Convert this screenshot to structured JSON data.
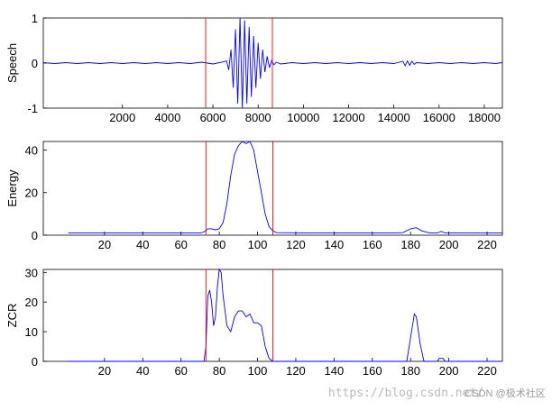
{
  "chart_data": [
    {
      "type": "line",
      "ylabel": "Speech",
      "color": "#0000ff",
      "x": [
        -1500,
        -1000,
        -500,
        0,
        500,
        1000,
        1500,
        2000,
        2500,
        3000,
        3500,
        4000,
        4500,
        5000,
        5500,
        6000,
        6500,
        6600,
        6700,
        6800,
        6900,
        7000,
        7100,
        7200,
        7300,
        7400,
        7500,
        7600,
        7700,
        7800,
        7900,
        8000,
        8100,
        8200,
        8300,
        8400,
        8500,
        8600,
        8700,
        8800,
        9000,
        9500,
        10000,
        10500,
        11000,
        11500,
        12000,
        12500,
        13000,
        13500,
        14000,
        14400,
        14500,
        14600,
        14700,
        14800,
        14900,
        15000,
        15500,
        16000,
        16500,
        17000,
        17500,
        18000,
        18500,
        18800
      ],
      "values": [
        0.01,
        -0.01,
        0.01,
        -0.01,
        0.01,
        -0.01,
        0.01,
        -0.01,
        0.01,
        -0.01,
        0.01,
        -0.01,
        0.01,
        -0.01,
        0.02,
        -0.02,
        0.03,
        0.05,
        -0.15,
        0.3,
        -0.55,
        0.75,
        -0.9,
        1.0,
        -1.0,
        0.95,
        -0.9,
        0.8,
        -0.75,
        0.6,
        -0.55,
        0.45,
        -0.35,
        0.3,
        -0.2,
        0.15,
        -0.1,
        0.06,
        -0.04,
        0.02,
        -0.02,
        0.01,
        -0.01,
        0.01,
        -0.01,
        0.01,
        -0.01,
        0.01,
        -0.01,
        0.01,
        -0.01,
        0.04,
        -0.06,
        0.05,
        -0.05,
        0.04,
        -0.03,
        0.01,
        -0.01,
        0.01,
        -0.01,
        0.01,
        -0.01,
        0.01,
        -0.01,
        0.01
      ],
      "xlim": [
        -1500,
        18800
      ],
      "xticks": [
        2000,
        4000,
        6000,
        8000,
        10000,
        12000,
        14000,
        16000,
        18000
      ],
      "ylim": [
        -1,
        1
      ],
      "yticks": [
        -1,
        0,
        1
      ],
      "vlines": [
        5680,
        8630
      ],
      "vline_color": "#ff0000"
    },
    {
      "type": "line",
      "ylabel": "Energy",
      "color": "#0000ff",
      "x": [
        1,
        20,
        40,
        60,
        70,
        72,
        74,
        76,
        78,
        80,
        82,
        84,
        86,
        88,
        90,
        92,
        94,
        96,
        98,
        100,
        102,
        104,
        106,
        108,
        110,
        130,
        150,
        170,
        176,
        180,
        183,
        186,
        190,
        194,
        196,
        198,
        210,
        228
      ],
      "values": [
        1,
        1,
        1,
        1,
        1,
        1.5,
        3,
        3,
        2.5,
        3,
        6,
        15,
        28,
        38,
        42,
        44,
        43,
        44,
        40,
        30,
        20,
        10,
        4,
        2,
        1.2,
        1,
        1,
        1,
        1.2,
        3,
        3.5,
        2,
        1,
        1,
        1.8,
        1,
        1,
        1
      ],
      "xlim": [
        -12,
        228
      ],
      "xticks": [
        20,
        40,
        60,
        80,
        100,
        120,
        140,
        160,
        180,
        200,
        220
      ],
      "ylim": [
        0,
        44
      ],
      "yticks": [
        0,
        20,
        40
      ],
      "vlines": [
        73,
        108
      ],
      "vline_color": "#ff0000"
    },
    {
      "type": "line",
      "ylabel": "ZCR",
      "color": "#0000ff",
      "x": [
        1,
        20,
        40,
        60,
        72,
        73,
        74,
        75,
        76,
        77,
        78,
        79,
        80,
        81,
        82,
        84,
        86,
        88,
        90,
        92,
        94,
        96,
        98,
        100,
        102,
        104,
        106,
        108,
        130,
        150,
        178,
        180,
        182,
        183,
        185,
        187,
        194,
        195,
        197,
        198,
        228
      ],
      "values": [
        0,
        0,
        0,
        0,
        0,
        5,
        22,
        24,
        20,
        12,
        15,
        25,
        31,
        30,
        22,
        12,
        10,
        15,
        17,
        17,
        15,
        16,
        13,
        13,
        12,
        5,
        1,
        0,
        0,
        0,
        0,
        8,
        16,
        15,
        6,
        0,
        0,
        1,
        1,
        0,
        0
      ],
      "xlim": [
        -12,
        228
      ],
      "xticks": [
        20,
        40,
        60,
        80,
        100,
        120,
        140,
        160,
        180,
        200,
        220
      ],
      "ylim": [
        0,
        31
      ],
      "yticks": [
        0,
        10,
        20,
        30
      ],
      "vlines": [
        73,
        108
      ],
      "vline_color": "#ff0000"
    }
  ],
  "watermark": {
    "url": "https://blog.csdn.net/",
    "text": "CSDN @极术社区"
  }
}
